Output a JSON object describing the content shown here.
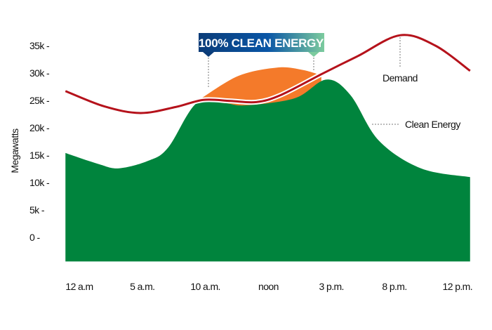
{
  "chart_data": {
    "type": "area",
    "title": "",
    "xlabel": "",
    "ylabel": "Megawatts",
    "categories": [
      "12 a.m",
      "5 a.m.",
      "10 a.m.",
      "noon",
      "3 p.m.",
      "8 p.m.",
      "12 p.m."
    ],
    "y_ticks": [
      0,
      5000,
      10000,
      15000,
      20000,
      25000,
      30000,
      35000
    ],
    "y_tick_labels": [
      "0 -",
      "5k -",
      "10k -",
      "15k -",
      "20k -",
      "25k -",
      "30k -",
      "35k -"
    ],
    "ylim": [
      -4400,
      37500
    ],
    "grid": false,
    "series": [
      {
        "name": "Demand",
        "kind": "line",
        "color": "#B5121B",
        "points": [
          [
            -0.22,
            26700
          ],
          [
            0.4,
            23900
          ],
          [
            0.97,
            22700
          ],
          [
            1.53,
            23800
          ],
          [
            1.97,
            25100
          ],
          [
            2.4,
            24900
          ],
          [
            2.81,
            24700
          ],
          [
            3.2,
            26000
          ],
          [
            3.86,
            29900
          ],
          [
            4.42,
            33100
          ],
          [
            5.09,
            36900
          ],
          [
            5.65,
            35000
          ],
          [
            6.2,
            30400
          ]
        ]
      },
      {
        "name": "Clean Energy",
        "kind": "area",
        "color": "#00843D",
        "points": [
          [
            -0.22,
            15400
          ],
          [
            0.3,
            13400
          ],
          [
            0.63,
            12600
          ],
          [
            1.1,
            14000
          ],
          [
            1.41,
            16400
          ],
          [
            1.86,
            24500
          ],
          [
            2.3,
            24500
          ],
          [
            2.64,
            24100
          ],
          [
            3.42,
            25400
          ],
          [
            3.92,
            28800
          ],
          [
            4.3,
            26000
          ],
          [
            4.75,
            17700
          ],
          [
            5.42,
            12600
          ],
          [
            6.2,
            11000
          ]
        ]
      },
      {
        "name": "100% CLEAN ENERGY",
        "kind": "surplus-area",
        "color": "#F47A2A",
        "points": [
          [
            1.95,
            25500
          ],
          [
            2.53,
            29500
          ],
          [
            3.14,
            31000
          ],
          [
            3.53,
            30600
          ],
          [
            3.84,
            29600
          ]
        ]
      }
    ],
    "annotations": {
      "banner": "100% CLEAN ENERGY",
      "demand_label": "Demand",
      "clean_label": "Clean Energy"
    },
    "colors": {
      "banner_start": "#0B3C78",
      "banner_mid": "#0A56A6",
      "banner_end": "#7CCB9E",
      "line_outline": "#FFFFFF"
    }
  }
}
